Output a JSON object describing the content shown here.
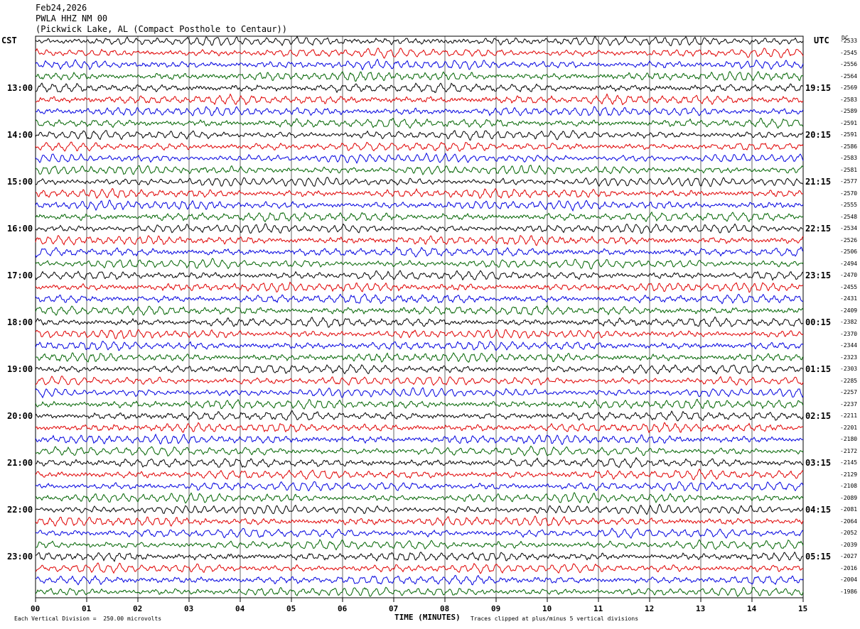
{
  "header": {
    "date": "Feb24,2026",
    "station": "PWLA HHZ NM 00",
    "location": "(Pickwick Lake, AL (Compact Posthole to Centaur))"
  },
  "left_zone": "CST",
  "right_zone": "UTC",
  "dc_label": "DC",
  "footer": {
    "scale_note": "Each Vertical Division =  250.00 microvolts",
    "clip_note": "Traces clipped at plus/minus 5 vertical divisions"
  },
  "colors": [
    "#000000",
    "#e00000",
    "#0000e0",
    "#006400"
  ],
  "chart_data": {
    "type": "line",
    "title": "",
    "xlabel": "TIME (MINUTES)",
    "ylabel": "",
    "xlim": [
      0,
      15
    ],
    "x_ticks": [
      "00",
      "01",
      "02",
      "03",
      "04",
      "05",
      "06",
      "07",
      "08",
      "09",
      "10",
      "11",
      "12",
      "13",
      "14",
      "15"
    ],
    "grid": true,
    "left_hour_labels": [
      "13:00",
      "14:00",
      "15:00",
      "16:00",
      "17:00",
      "18:00",
      "19:00",
      "20:00",
      "21:00",
      "22:00",
      "23:00"
    ],
    "right_hour_labels": [
      "19:15",
      "20:15",
      "21:15",
      "22:15",
      "23:15",
      "00:15",
      "01:15",
      "02:15",
      "03:15",
      "04:15",
      "05:15"
    ],
    "dc_offsets": [
      "-2533",
      "-2545",
      "-2556",
      "-2564",
      "-2569",
      "-2583",
      "-2589",
      "-2591",
      "-2591",
      "-2586",
      "-2583",
      "-2581",
      "-2577",
      "-2570",
      "-2555",
      "-2548",
      "-2534",
      "-2526",
      "-2506",
      "-2494",
      "-2470",
      "-2455",
      "-2431",
      "-2409",
      "-2382",
      "-2370",
      "-2344",
      "-2323",
      "-2303",
      "-2285",
      "-2257",
      "-2237",
      "-2211",
      "-2201",
      "-2180",
      "-2172",
      "-2145",
      "-2129",
      "-2108",
      "-2089",
      "-2081",
      "-2064",
      "-2052",
      "-2039",
      "-2027",
      "-2016",
      "-2004",
      "-1986"
    ]
  }
}
